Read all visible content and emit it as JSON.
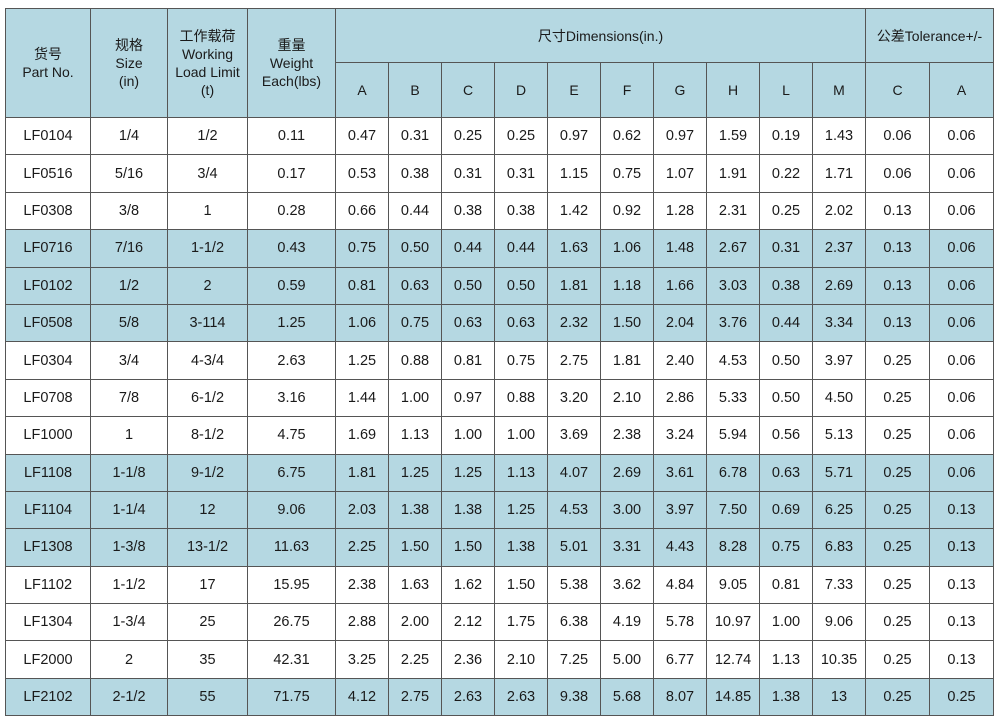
{
  "header": {
    "part_no": [
      "货号",
      "Part No."
    ],
    "size": [
      "规格",
      "Size",
      "(in)"
    ],
    "wll": [
      "工作载荷",
      "Working",
      "Load Limit",
      "(t)"
    ],
    "weight": [
      "重量",
      "Weight",
      "Each(lbs)"
    ],
    "dimensions": "尺寸Dimensions(in.)",
    "tolerance": "公差Tolerance+/-",
    "dim_columns": [
      "A",
      "B",
      "C",
      "D",
      "E",
      "F",
      "G",
      "H",
      "L",
      "M"
    ],
    "tol_columns": [
      "C",
      "A"
    ]
  },
  "highlight_color": "#b5d8e2",
  "rows": [
    {
      "hl": false,
      "cells": [
        "LF0104",
        "1/4",
        "1/2",
        "0.11",
        "0.47",
        "0.31",
        "0.25",
        "0.25",
        "0.97",
        "0.62",
        "0.97",
        "1.59",
        "0.19",
        "1.43",
        "0.06",
        "0.06"
      ]
    },
    {
      "hl": false,
      "cells": [
        "LF0516",
        "5/16",
        "3/4",
        "0.17",
        "0.53",
        "0.38",
        "0.31",
        "0.31",
        "1.15",
        "0.75",
        "1.07",
        "1.91",
        "0.22",
        "1.71",
        "0.06",
        "0.06"
      ]
    },
    {
      "hl": false,
      "cells": [
        "LF0308",
        "3/8",
        "1",
        "0.28",
        "0.66",
        "0.44",
        "0.38",
        "0.38",
        "1.42",
        "0.92",
        "1.28",
        "2.31",
        "0.25",
        "2.02",
        "0.13",
        "0.06"
      ]
    },
    {
      "hl": true,
      "cells": [
        "LF0716",
        "7/16",
        "1-1/2",
        "0.43",
        "0.75",
        "0.50",
        "0.44",
        "0.44",
        "1.63",
        "1.06",
        "1.48",
        "2.67",
        "0.31",
        "2.37",
        "0.13",
        "0.06"
      ]
    },
    {
      "hl": true,
      "cells": [
        "LF0102",
        "1/2",
        "2",
        "0.59",
        "0.81",
        "0.63",
        "0.50",
        "0.50",
        "1.81",
        "1.18",
        "1.66",
        "3.03",
        "0.38",
        "2.69",
        "0.13",
        "0.06"
      ]
    },
    {
      "hl": true,
      "cells": [
        "LF0508",
        "5/8",
        "3-114",
        "1.25",
        "1.06",
        "0.75",
        "0.63",
        "0.63",
        "2.32",
        "1.50",
        "2.04",
        "3.76",
        "0.44",
        "3.34",
        "0.13",
        "0.06"
      ]
    },
    {
      "hl": false,
      "cells": [
        "LF0304",
        "3/4",
        "4-3/4",
        "2.63",
        "1.25",
        "0.88",
        "0.81",
        "0.75",
        "2.75",
        "1.81",
        "2.40",
        "4.53",
        "0.50",
        "3.97",
        "0.25",
        "0.06"
      ]
    },
    {
      "hl": false,
      "cells": [
        "LF0708",
        "7/8",
        "6-1/2",
        "3.16",
        "1.44",
        "1.00",
        "0.97",
        "0.88",
        "3.20",
        "2.10",
        "2.86",
        "5.33",
        "0.50",
        "4.50",
        "0.25",
        "0.06"
      ]
    },
    {
      "hl": false,
      "cells": [
        "LF1000",
        "1",
        "8-1/2",
        "4.75",
        "1.69",
        "1.13",
        "1.00",
        "1.00",
        "3.69",
        "2.38",
        "3.24",
        "5.94",
        "0.56",
        "5.13",
        "0.25",
        "0.06"
      ]
    },
    {
      "hl": true,
      "cells": [
        "LF1108",
        "1-1/8",
        "9-1/2",
        "6.75",
        "1.81",
        "1.25",
        "1.25",
        "1.13",
        "4.07",
        "2.69",
        "3.61",
        "6.78",
        "0.63",
        "5.71",
        "0.25",
        "0.06"
      ]
    },
    {
      "hl": true,
      "cells": [
        "LF1104",
        "1-1/4",
        "12",
        "9.06",
        "2.03",
        "1.38",
        "1.38",
        "1.25",
        "4.53",
        "3.00",
        "3.97",
        "7.50",
        "0.69",
        "6.25",
        "0.25",
        "0.13"
      ]
    },
    {
      "hl": true,
      "cells": [
        "LF1308",
        "1-3/8",
        "13-1/2",
        "11.63",
        "2.25",
        "1.50",
        "1.50",
        "1.38",
        "5.01",
        "3.31",
        "4.43",
        "8.28",
        "0.75",
        "6.83",
        "0.25",
        "0.13"
      ]
    },
    {
      "hl": false,
      "cells": [
        "LF1102",
        "1-1/2",
        "17",
        "15.95",
        "2.38",
        "1.63",
        "1.62",
        "1.50",
        "5.38",
        "3.62",
        "4.84",
        "9.05",
        "0.81",
        "7.33",
        "0.25",
        "0.13"
      ]
    },
    {
      "hl": false,
      "cells": [
        "LF1304",
        "1-3/4",
        "25",
        "26.75",
        "2.88",
        "2.00",
        "2.12",
        "1.75",
        "6.38",
        "4.19",
        "5.78",
        "10.97",
        "1.00",
        "9.06",
        "0.25",
        "0.13"
      ]
    },
    {
      "hl": false,
      "cells": [
        "LF2000",
        "2",
        "35",
        "42.31",
        "3.25",
        "2.25",
        "2.36",
        "2.10",
        "7.25",
        "5.00",
        "6.77",
        "12.74",
        "1.13",
        "10.35",
        "0.25",
        "0.13"
      ]
    },
    {
      "hl": true,
      "cells": [
        "LF2102",
        "2-1/2",
        "55",
        "71.75",
        "4.12",
        "2.75",
        "2.63",
        "2.63",
        "9.38",
        "5.68",
        "8.07",
        "14.85",
        "1.38",
        "13",
        "0.25",
        "0.25"
      ]
    }
  ]
}
